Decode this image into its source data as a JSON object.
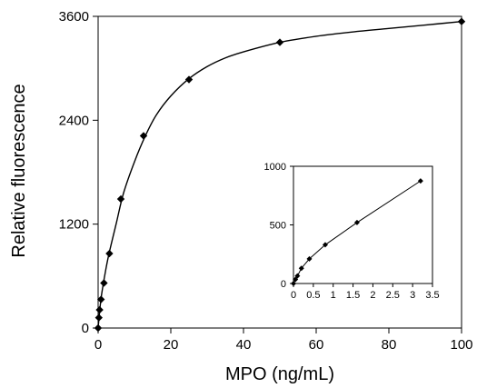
{
  "chart_data": [
    {
      "type": "scatter",
      "role": "main",
      "xlabel": "MPO (ng/mL)",
      "ylabel": "Relative fluorescence",
      "xlim": [
        0,
        100
      ],
      "ylim": [
        0,
        3600
      ],
      "x_ticks": [
        0,
        20,
        40,
        60,
        80,
        100
      ],
      "y_ticks": [
        0,
        1200,
        2400,
        3600
      ],
      "x_tick_labels": [
        "0",
        "20",
        "40",
        "60",
        "80",
        "100"
      ],
      "y_tick_labels": [
        "0",
        "1200",
        "2400",
        "3600"
      ],
      "marker": "diamond",
      "fit_line": "smooth saturation curve",
      "series": [
        {
          "x": [
            0,
            0.2,
            0.4,
            0.8,
            1.6,
            3.1,
            6.25,
            12.5,
            25,
            50,
            100
          ],
          "y": [
            0,
            120,
            210,
            330,
            520,
            860,
            1490,
            2220,
            2870,
            3300,
            3540
          ]
        }
      ],
      "fit_curve": {
        "x": [
          0,
          0.5,
          1,
          2,
          3,
          5,
          7,
          10,
          13,
          16,
          20,
          25,
          30,
          35,
          40,
          50,
          60,
          70,
          80,
          90,
          100
        ],
        "y": [
          0,
          230,
          400,
          650,
          860,
          1210,
          1560,
          1920,
          2220,
          2460,
          2680,
          2880,
          3020,
          3120,
          3190,
          3300,
          3370,
          3420,
          3460,
          3500,
          3540
        ]
      },
      "grid": false
    },
    {
      "type": "scatter",
      "role": "inset",
      "xlabel": "",
      "ylabel": "",
      "xlim": [
        0,
        3.5
      ],
      "ylim": [
        0,
        1000
      ],
      "x_ticks": [
        0,
        0.5,
        1,
        1.5,
        2,
        2.5,
        3,
        3.5
      ],
      "y_ticks": [
        0,
        500,
        1000
      ],
      "x_tick_labels": [
        "0",
        "0.5",
        "1",
        "1.5",
        "2",
        "2.5",
        "3",
        "3.5"
      ],
      "y_tick_labels": [
        "0",
        "500",
        "1000"
      ],
      "marker": "diamond",
      "fit_line": "connected",
      "series": [
        {
          "x": [
            0,
            0.05,
            0.1,
            0.2,
            0.4,
            0.8,
            1.6,
            3.2
          ],
          "y": [
            0,
            35,
            65,
            130,
            210,
            330,
            520,
            875
          ]
        }
      ],
      "grid": false
    }
  ]
}
